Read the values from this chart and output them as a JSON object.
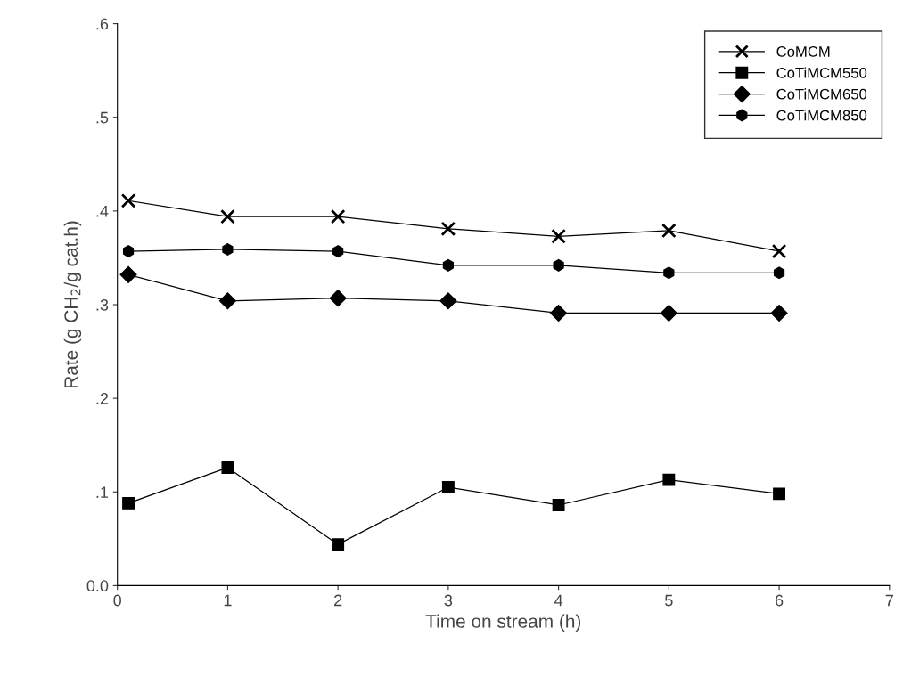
{
  "chart_data": {
    "type": "line",
    "xlabel": "Time on stream (h)",
    "ylabel": "Rate (g CH$_{2}$/g cat.h)",
    "x": [
      0.1,
      1,
      2,
      3,
      4,
      5,
      6
    ],
    "series": [
      {
        "name": "CoMCM",
        "color": "#000000",
        "marker": "cross",
        "values": [
          0.411,
          0.394,
          0.394,
          0.381,
          0.373,
          0.379,
          0.357
        ]
      },
      {
        "name": "CoTiMCM550",
        "color": "#000000",
        "marker": "square",
        "values": [
          0.088,
          0.126,
          0.044,
          0.105,
          0.086,
          0.113,
          0.098
        ]
      },
      {
        "name": "CoTiMCM650",
        "color": "#000000",
        "marker": "diamond",
        "values": [
          0.332,
          0.304,
          0.307,
          0.304,
          0.291,
          0.291,
          0.291
        ]
      },
      {
        "name": "CoTiMCM850",
        "color": "#000000",
        "marker": "circle",
        "values": [
          0.357,
          0.359,
          0.357,
          0.342,
          0.342,
          0.334,
          0.334
        ]
      }
    ],
    "xlim": [
      0,
      7
    ],
    "xticks": [
      0,
      1,
      2,
      3,
      4,
      5,
      6,
      7
    ],
    "ylim": [
      0,
      0.6
    ],
    "yticks": [
      {
        "value": 0,
        "label": "0.0"
      },
      {
        "value": 0.1,
        "label": ".1"
      },
      {
        "value": 0.2,
        "label": ".2"
      },
      {
        "value": 0.3,
        "label": ".3"
      },
      {
        "value": 0.4,
        "label": ".4"
      },
      {
        "value": 0.5,
        "label": ".5"
      },
      {
        "value": 0.6,
        "label": ".6"
      }
    ],
    "legend": "top right",
    "grid": false,
    "line_style": "solid"
  }
}
